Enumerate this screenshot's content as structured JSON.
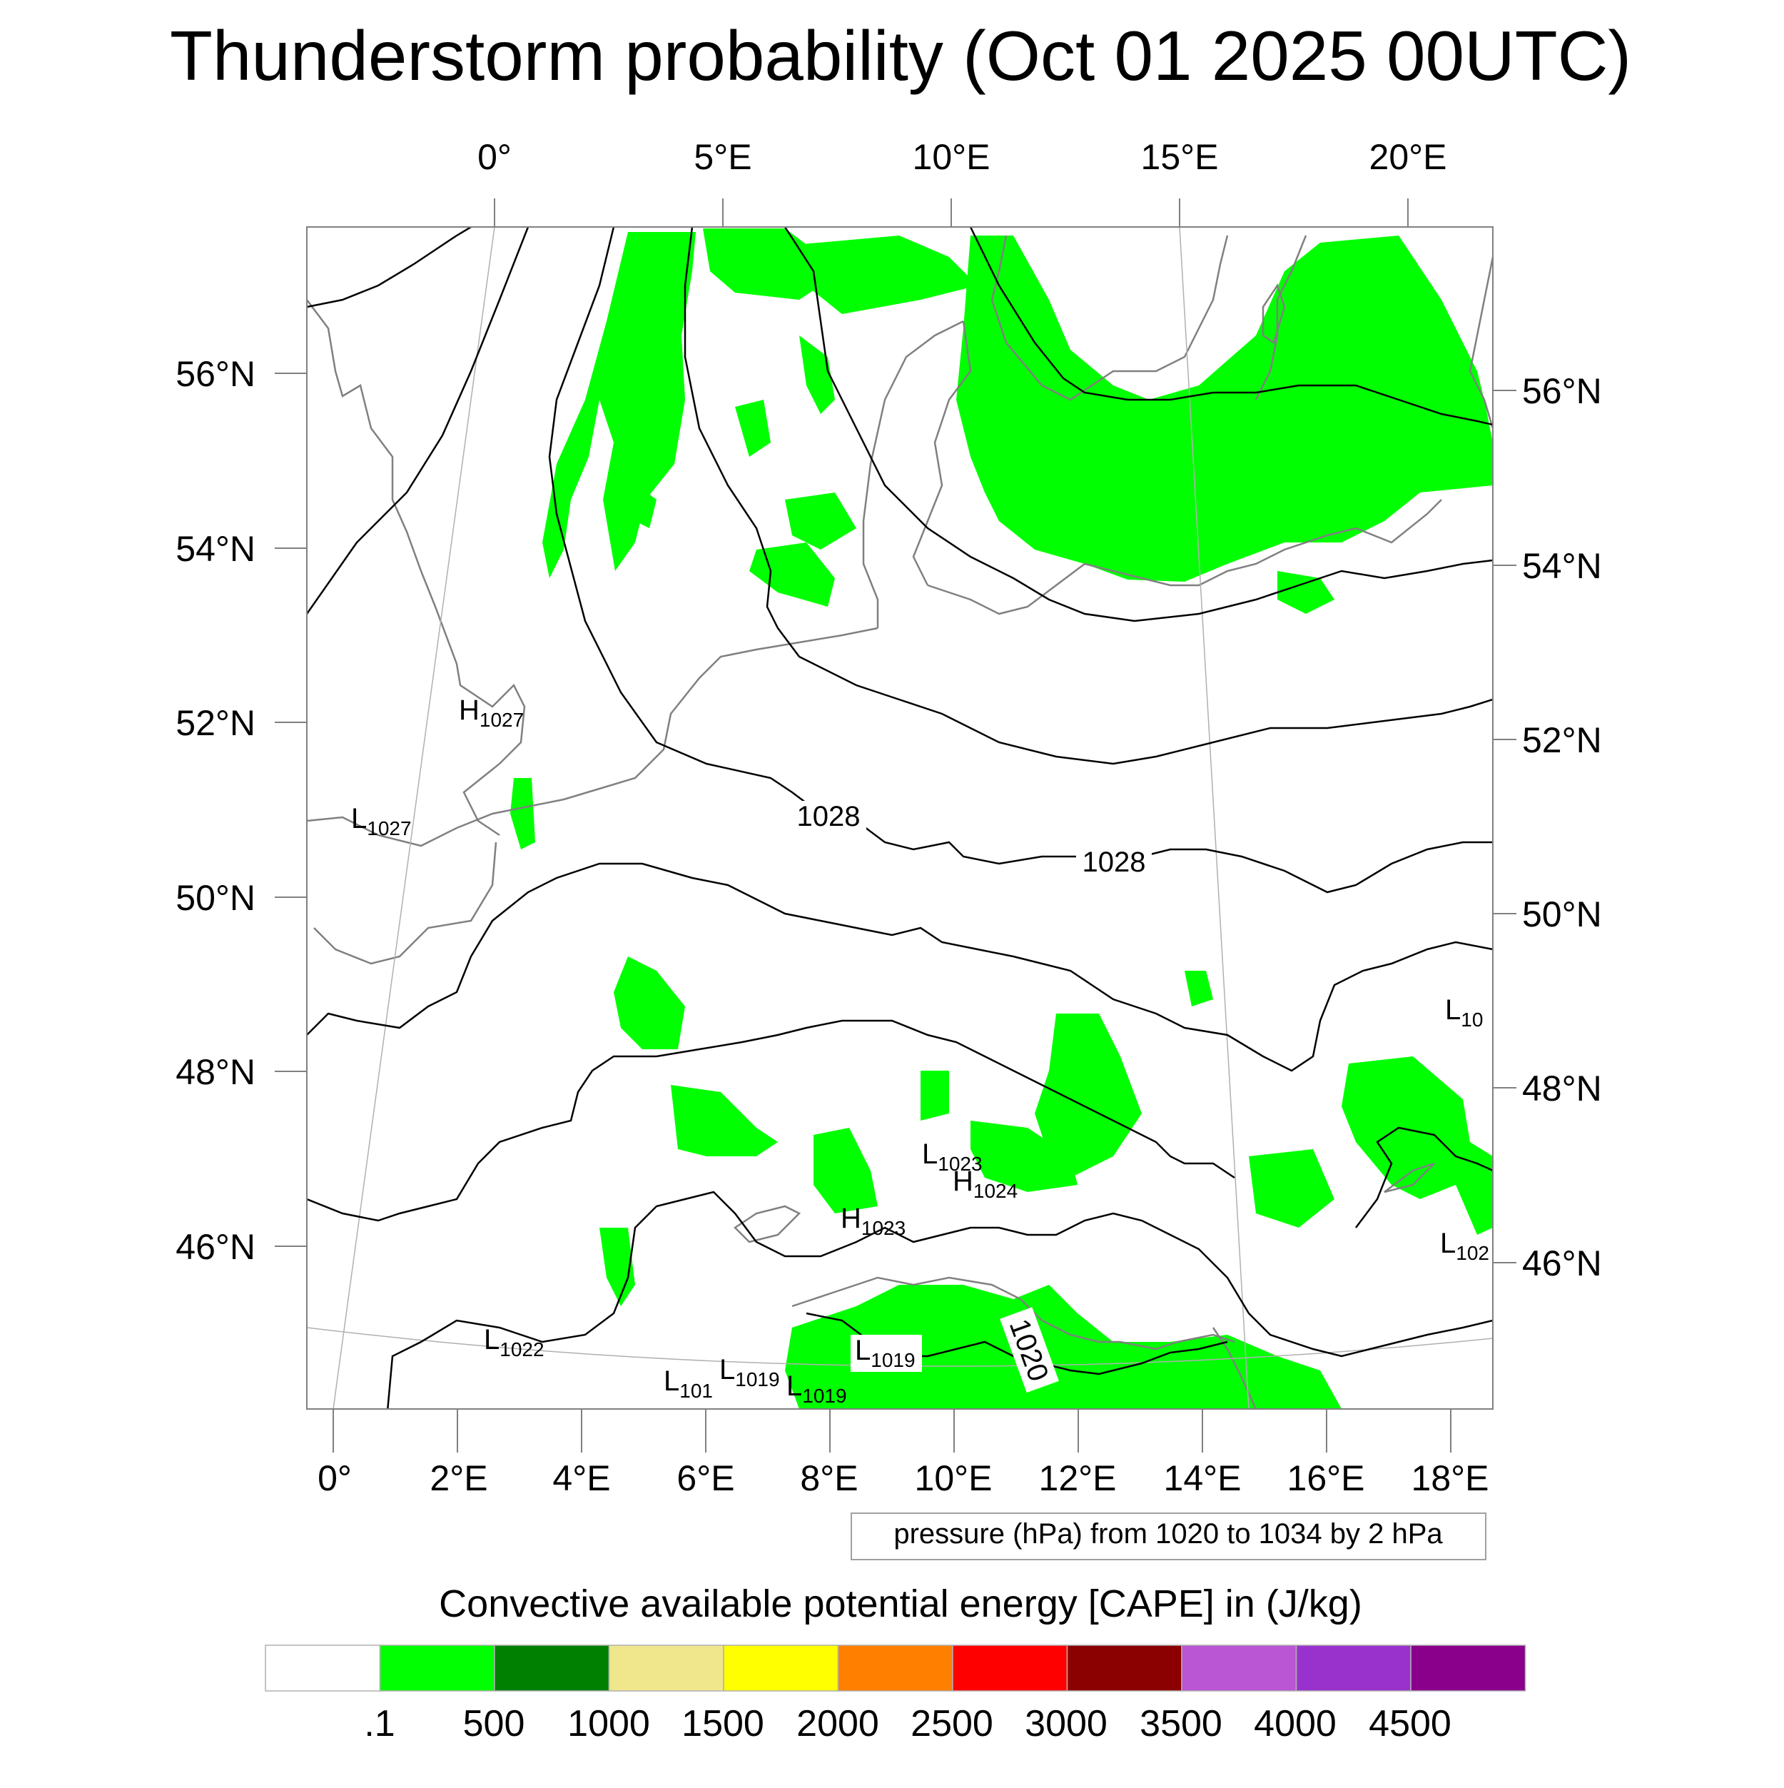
{
  "title": "Thunderstorm probability (Oct 01 2025 00UTC)",
  "top_lon_labels": [
    "0°",
    "5°E",
    "10°E",
    "15°E",
    "20°E"
  ],
  "bottom_lon_labels": [
    "0°",
    "2°E",
    "4°E",
    "6°E",
    "8°E",
    "10°E",
    "12°E",
    "14°E",
    "16°E",
    "18°E"
  ],
  "left_lat_labels": [
    "56°N",
    "54°N",
    "52°N",
    "50°N",
    "48°N",
    "46°N"
  ],
  "right_lat_labels": [
    "56°N",
    "54°N",
    "52°N",
    "50°N",
    "48°N",
    "46°N"
  ],
  "contour_labels": [
    "1028",
    "1028",
    "1020"
  ],
  "pressure_centers": [
    {
      "letter": "H",
      "value": "1027"
    },
    {
      "letter": "L",
      "value": "1027"
    },
    {
      "letter": "L",
      "value": "1023"
    },
    {
      "letter": "H",
      "value": "1024"
    },
    {
      "letter": "H",
      "value": "1023"
    },
    {
      "letter": "L",
      "value": "1022"
    },
    {
      "letter": "L",
      "value": "101"
    },
    {
      "letter": "L",
      "value": "1019"
    },
    {
      "letter": "L",
      "value": "1019"
    },
    {
      "letter": "L",
      "value": "1019"
    },
    {
      "letter": "L",
      "value": "10"
    },
    {
      "letter": "L",
      "value": "102"
    }
  ],
  "contour_info": "pressure (hPa) from 1020 to 1034 by 2 hPa",
  "colorbar": {
    "title": "Convective available potential energy [CAPE] in (J/kg)",
    "colors": [
      "#ffffff",
      "#00ff00",
      "#008000",
      "#f0e68c",
      "#ffff00",
      "#ff8000",
      "#ff0000",
      "#8b0000",
      "#ba55d3",
      "#9932cc",
      "#8b008b"
    ],
    "labels": [
      ".1",
      "500",
      "1000",
      "1500",
      "2000",
      "2500",
      "3000",
      "3500",
      "4000",
      "4500"
    ]
  },
  "colors": {
    "cape_fill": "#00ff00",
    "isobar": "#000000",
    "coastline": "#808080",
    "frame": "#808080"
  }
}
